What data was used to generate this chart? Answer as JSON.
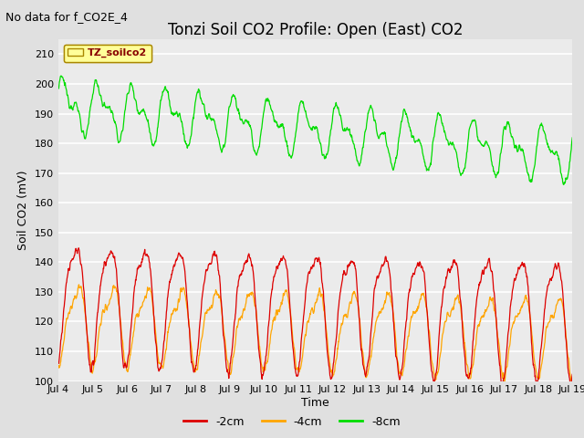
{
  "title": "Tonzi Soil CO2 Profile: Open (East) CO2",
  "subtitle": "No data for f_CO2E_4",
  "ylabel": "Soil CO2 (mV)",
  "xlabel": "Time",
  "legend_label": "TZ_soilco2",
  "legend_box_color": "#ffff99",
  "legend_box_edge": "#aa8800",
  "series_labels": [
    "-2cm",
    "-4cm",
    "-8cm"
  ],
  "series_colors": [
    "#dd0000",
    "#ffa500",
    "#00dd00"
  ],
  "x_tick_labels": [
    "Jul 4",
    "Jul 5",
    "Jul 6",
    "Jul 7",
    "Jul 8",
    "Jul 9",
    "Jul 10",
    "Jul 11",
    "Jul 12",
    "Jul 13",
    "Jul 14",
    "Jul 15",
    "Jul 16",
    "Jul 17",
    "Jul 18",
    "Jul 19"
  ],
  "ylim": [
    100,
    215
  ],
  "yticks": [
    100,
    110,
    120,
    130,
    140,
    150,
    160,
    170,
    180,
    190,
    200,
    210
  ],
  "n_points": 1500,
  "bg_color": "#e0e0e0",
  "plot_bg_color": "#ebebeb",
  "title_fontsize": 12,
  "axis_fontsize": 9,
  "tick_fontsize": 8,
  "subtitle_fontsize": 9
}
